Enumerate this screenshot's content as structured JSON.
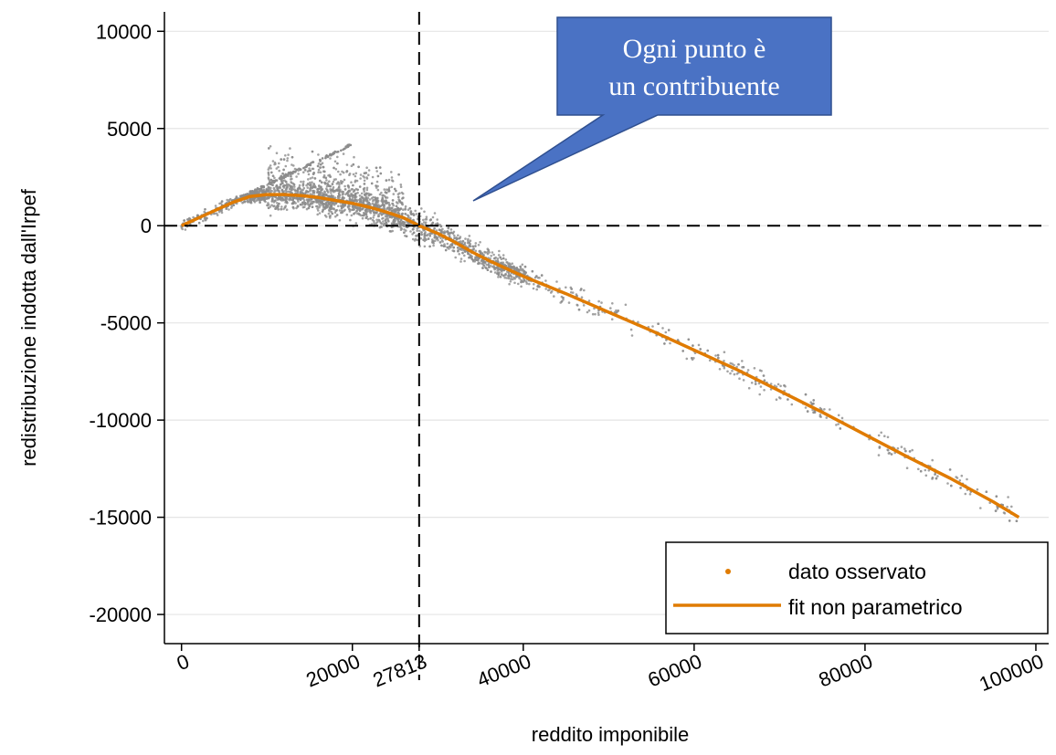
{
  "chart_data": {
    "type": "scatter",
    "xlabel": "reddito imponibile",
    "ylabel": "redistribuzione indotta dall'Irpef",
    "xlim": [
      -2000,
      101500
    ],
    "ylim": [
      -21500,
      11000
    ],
    "x_ticks": [
      0,
      20000,
      27813,
      40000,
      60000,
      80000,
      100000
    ],
    "y_ticks": [
      10000,
      5000,
      0,
      -5000,
      -10000,
      -15000,
      -20000
    ],
    "reference_lines": {
      "x": 27813,
      "y": 0
    },
    "grid": true,
    "legend_position": "bottom-right",
    "series": [
      {
        "name": "dato osservato",
        "kind": "points",
        "color": "#8c8c8c"
      },
      {
        "name": "fit non parametrico",
        "kind": "line",
        "color": "#e07b00",
        "x": [
          0,
          2000,
          4000,
          6000,
          8000,
          10000,
          12000,
          14000,
          16000,
          18000,
          20000,
          22000,
          24000,
          26000,
          27813,
          30000,
          32000,
          34000,
          36000,
          38000,
          40000,
          45000,
          50000,
          55000,
          60000,
          65000,
          70000,
          75000,
          80000,
          85000,
          90000,
          95000,
          98000
        ],
        "y": [
          0,
          400,
          800,
          1200,
          1500,
          1600,
          1600,
          1550,
          1450,
          1300,
          1150,
          950,
          700,
          400,
          0,
          -400,
          -850,
          -1350,
          -1800,
          -2200,
          -2600,
          -3500,
          -4450,
          -5400,
          -6400,
          -7400,
          -8500,
          -9600,
          -10750,
          -11900,
          -13000,
          -14200,
          -15000
        ]
      }
    ],
    "annotation": "Ogni punto è un contribuente"
  },
  "legend": {
    "observed": "dato osservato",
    "fit": "fit non parametrico"
  },
  "callout": {
    "line1": "Ogni punto è",
    "line2": "un contribuente",
    "fill_color": "#4a72c4"
  }
}
